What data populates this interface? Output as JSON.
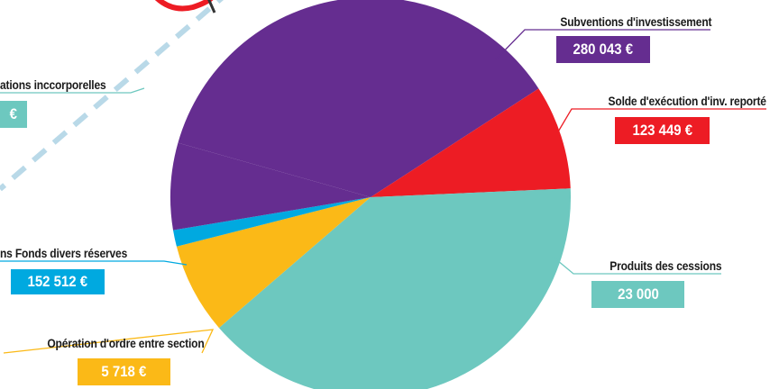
{
  "chart_data": {
    "type": "pie",
    "slices": [
      {
        "label": "Subventions d'investissement",
        "value_label": "280 043 €",
        "value": 280043,
        "color": "#652d90"
      },
      {
        "label": "Solde d'exécution d'inv. reporté",
        "value_label": "123 449 €",
        "value": 123449,
        "color": "#ed1c24"
      },
      {
        "label": "Produits des cessions",
        "value_label": "23 000",
        "value": 23000,
        "color": "#6dc8bf"
      },
      {
        "label": "Opération d'ordre entre section",
        "value_label": "5 718 €",
        "value": 5718,
        "color": "#fbb917"
      },
      {
        "label": "ns Fonds divers réserves",
        "value_label": "152 512 €",
        "value": 152512,
        "color": "#00a9e0"
      },
      {
        "label": "ations inccorporelles",
        "value_label": "€",
        "color": "#6dc8bf"
      }
    ],
    "legend": "none",
    "grid": false
  }
}
